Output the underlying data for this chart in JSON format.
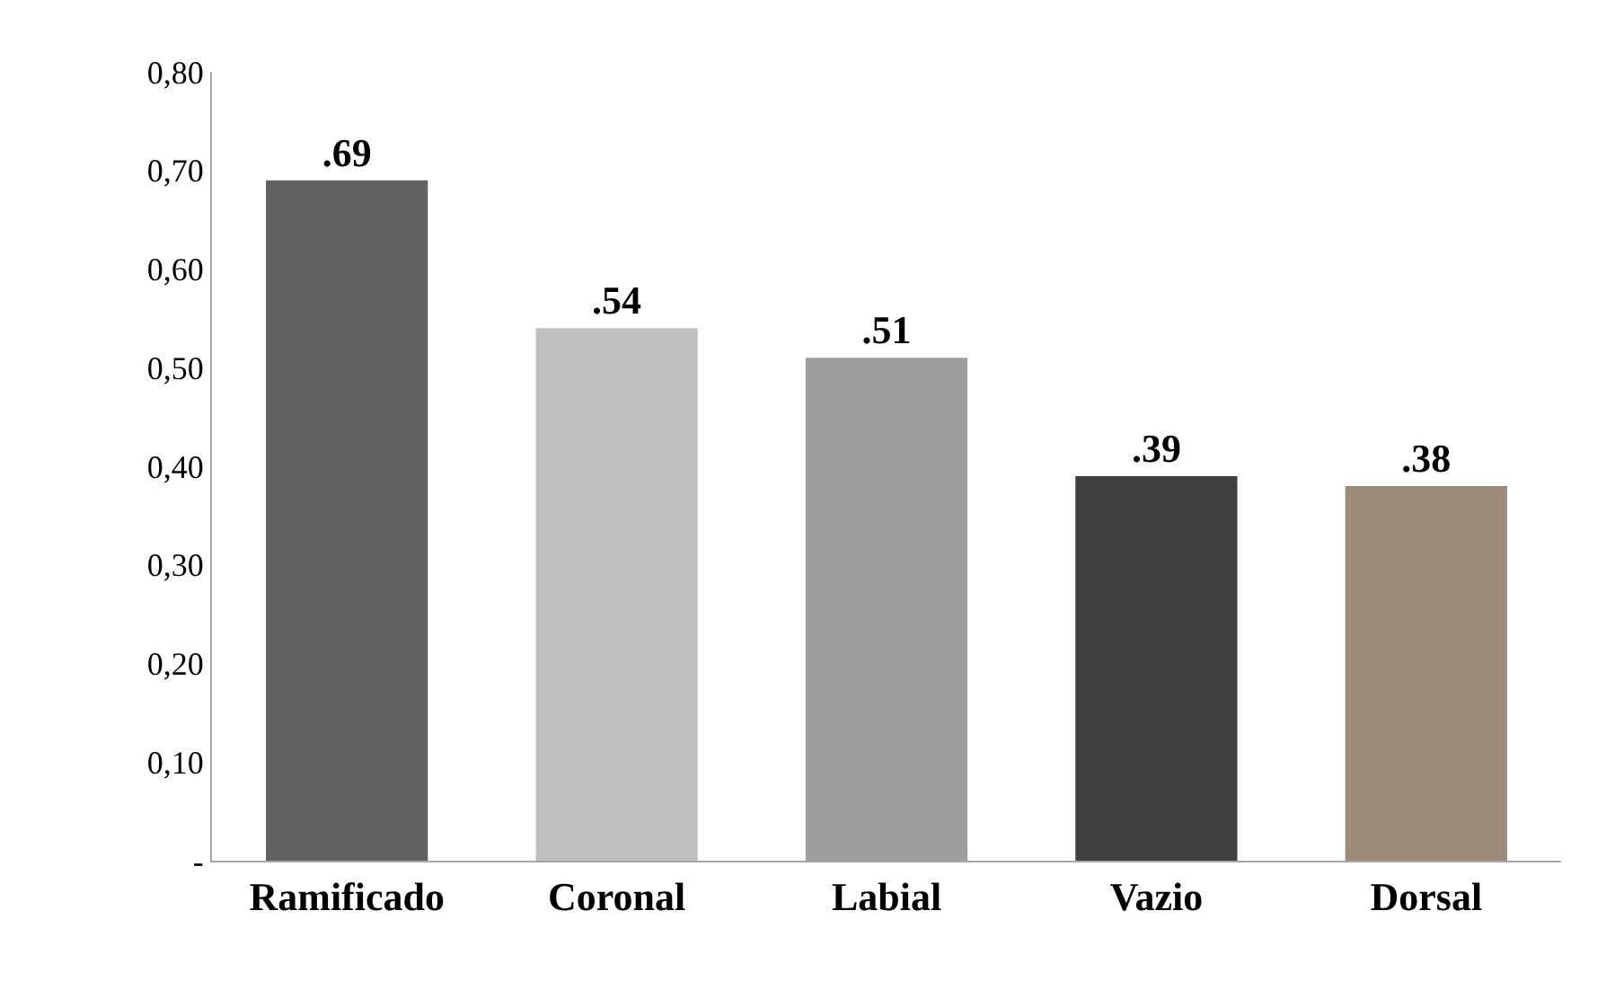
{
  "chart_data": {
    "type": "bar",
    "categories": [
      "Ramificado",
      "Coronal",
      "Labial",
      "Vazio",
      "Dorsal"
    ],
    "values": [
      0.69,
      0.54,
      0.51,
      0.39,
      0.38
    ],
    "colors": [
      "#616161",
      "#bfbfbf",
      "#9e9e9e",
      "#404040",
      "#9c8b79"
    ],
    "value_labels": [
      ".69",
      ".54",
      ".51",
      ".39",
      ".38"
    ],
    "ylim": [
      0,
      0.8
    ],
    "yticks": [
      {
        "value": 0,
        "label": "-"
      },
      {
        "value": 0.1,
        "label": "0,10"
      },
      {
        "value": 0.2,
        "label": "0,20"
      },
      {
        "value": 0.3,
        "label": "0,30"
      },
      {
        "value": 0.4,
        "label": "0,40"
      },
      {
        "value": 0.5,
        "label": "0,50"
      },
      {
        "value": 0.6,
        "label": "0,60"
      },
      {
        "value": 0.7,
        "label": "0,70"
      },
      {
        "value": 0.8,
        "label": "0,80"
      }
    ]
  }
}
